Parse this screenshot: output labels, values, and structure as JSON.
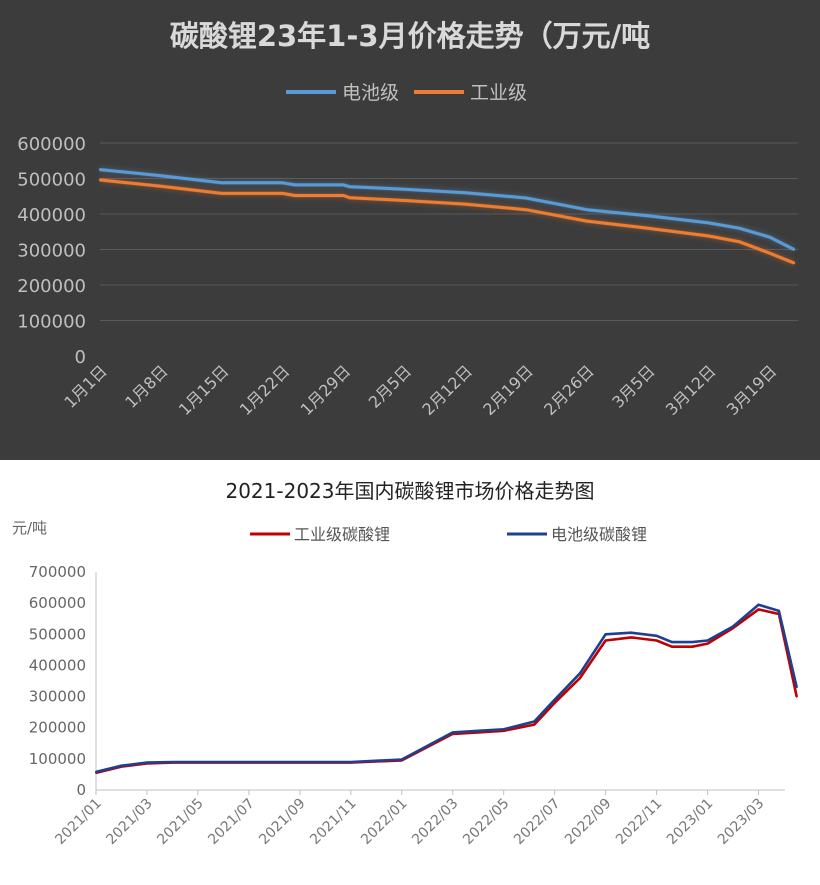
{
  "chart_data": [
    {
      "type": "line",
      "title": "碳酸锂23年1-3月价格走势（万元/吨",
      "ylim": [
        0,
        600000
      ],
      "yticks": [
        "600000",
        "500000",
        "400000",
        "300000",
        "200000",
        "100000",
        "0"
      ],
      "tick_values": [
        600000,
        500000,
        400000,
        300000,
        200000,
        100000,
        0
      ],
      "categories": [
        "1月1日",
        "1月8日",
        "1月15日",
        "1月22日",
        "1月29日",
        "2月5日",
        "2月12日",
        "2月19日",
        "2月26日",
        "3月5日",
        "3月12日",
        "3月19日"
      ],
      "legend": "top-center",
      "series": [
        {
          "name": "电池级",
          "color": "#5b9bd5",
          "x": [
            0,
            1,
            2,
            3,
            3.2,
            4,
            4.1,
            5,
            6,
            7,
            8,
            9,
            10,
            10.5,
            11,
            11.4
          ],
          "values": [
            525000,
            508000,
            488000,
            488000,
            482000,
            482000,
            477000,
            470000,
            460000,
            445000,
            412000,
            395000,
            375000,
            360000,
            335000,
            300000
          ]
        },
        {
          "name": "工业级",
          "color": "#ed7d31",
          "x": [
            0,
            1,
            2,
            3,
            3.2,
            4,
            4.1,
            5,
            6,
            7,
            8,
            9,
            10,
            10.5,
            11,
            11.4
          ],
          "values": [
            496000,
            478000,
            458000,
            458000,
            452000,
            452000,
            446000,
            438000,
            428000,
            412000,
            380000,
            360000,
            338000,
            322000,
            290000,
            262000
          ]
        }
      ]
    },
    {
      "type": "line",
      "title": "2021-2023年国内碳酸锂市场价格走势图",
      "unit": "元/吨",
      "ylim": [
        0,
        700000
      ],
      "yticks": [
        "700000",
        "600000",
        "500000",
        "400000",
        "300000",
        "200000",
        "100000",
        "0"
      ],
      "tick_values": [
        700000,
        600000,
        500000,
        400000,
        300000,
        200000,
        100000,
        0
      ],
      "categories": [
        "2021/01",
        "2021/03",
        "2021/05",
        "2021/07",
        "2021/09",
        "2021/11",
        "2022/01",
        "2022/03",
        "2022/05",
        "2022/07",
        "2022/09",
        "2022/11",
        "2023/01",
        "2023/03"
      ],
      "legend": "top-center",
      "series": [
        {
          "name": "工业级碳酸锂",
          "color": "#c00000",
          "x": [
            0,
            0.5,
            1,
            1.5,
            2,
            3,
            4,
            5,
            6,
            7,
            7.5,
            8,
            8.6,
            9,
            9.5,
            10,
            10.5,
            11,
            11.3,
            11.7,
            12,
            12.5,
            13,
            13.4,
            13.75
          ],
          "values": [
            55000,
            75000,
            85000,
            88000,
            88000,
            88000,
            88000,
            88000,
            95000,
            180000,
            185000,
            190000,
            210000,
            280000,
            360000,
            480000,
            490000,
            480000,
            460000,
            460000,
            470000,
            520000,
            580000,
            565000,
            300000
          ]
        },
        {
          "name": "电池级碳酸锂",
          "color": "#1f3f8f",
          "x": [
            0,
            0.5,
            1,
            1.5,
            2,
            3,
            4,
            5,
            6,
            7,
            7.5,
            8,
            8.6,
            9,
            9.5,
            10,
            10.5,
            11,
            11.3,
            11.7,
            12,
            12.5,
            13,
            13.4,
            13.75
          ],
          "values": [
            58000,
            78000,
            88000,
            90000,
            90000,
            90000,
            90000,
            90000,
            98000,
            185000,
            190000,
            195000,
            220000,
            290000,
            375000,
            500000,
            505000,
            495000,
            475000,
            475000,
            480000,
            525000,
            595000,
            575000,
            330000
          ]
        }
      ]
    }
  ]
}
